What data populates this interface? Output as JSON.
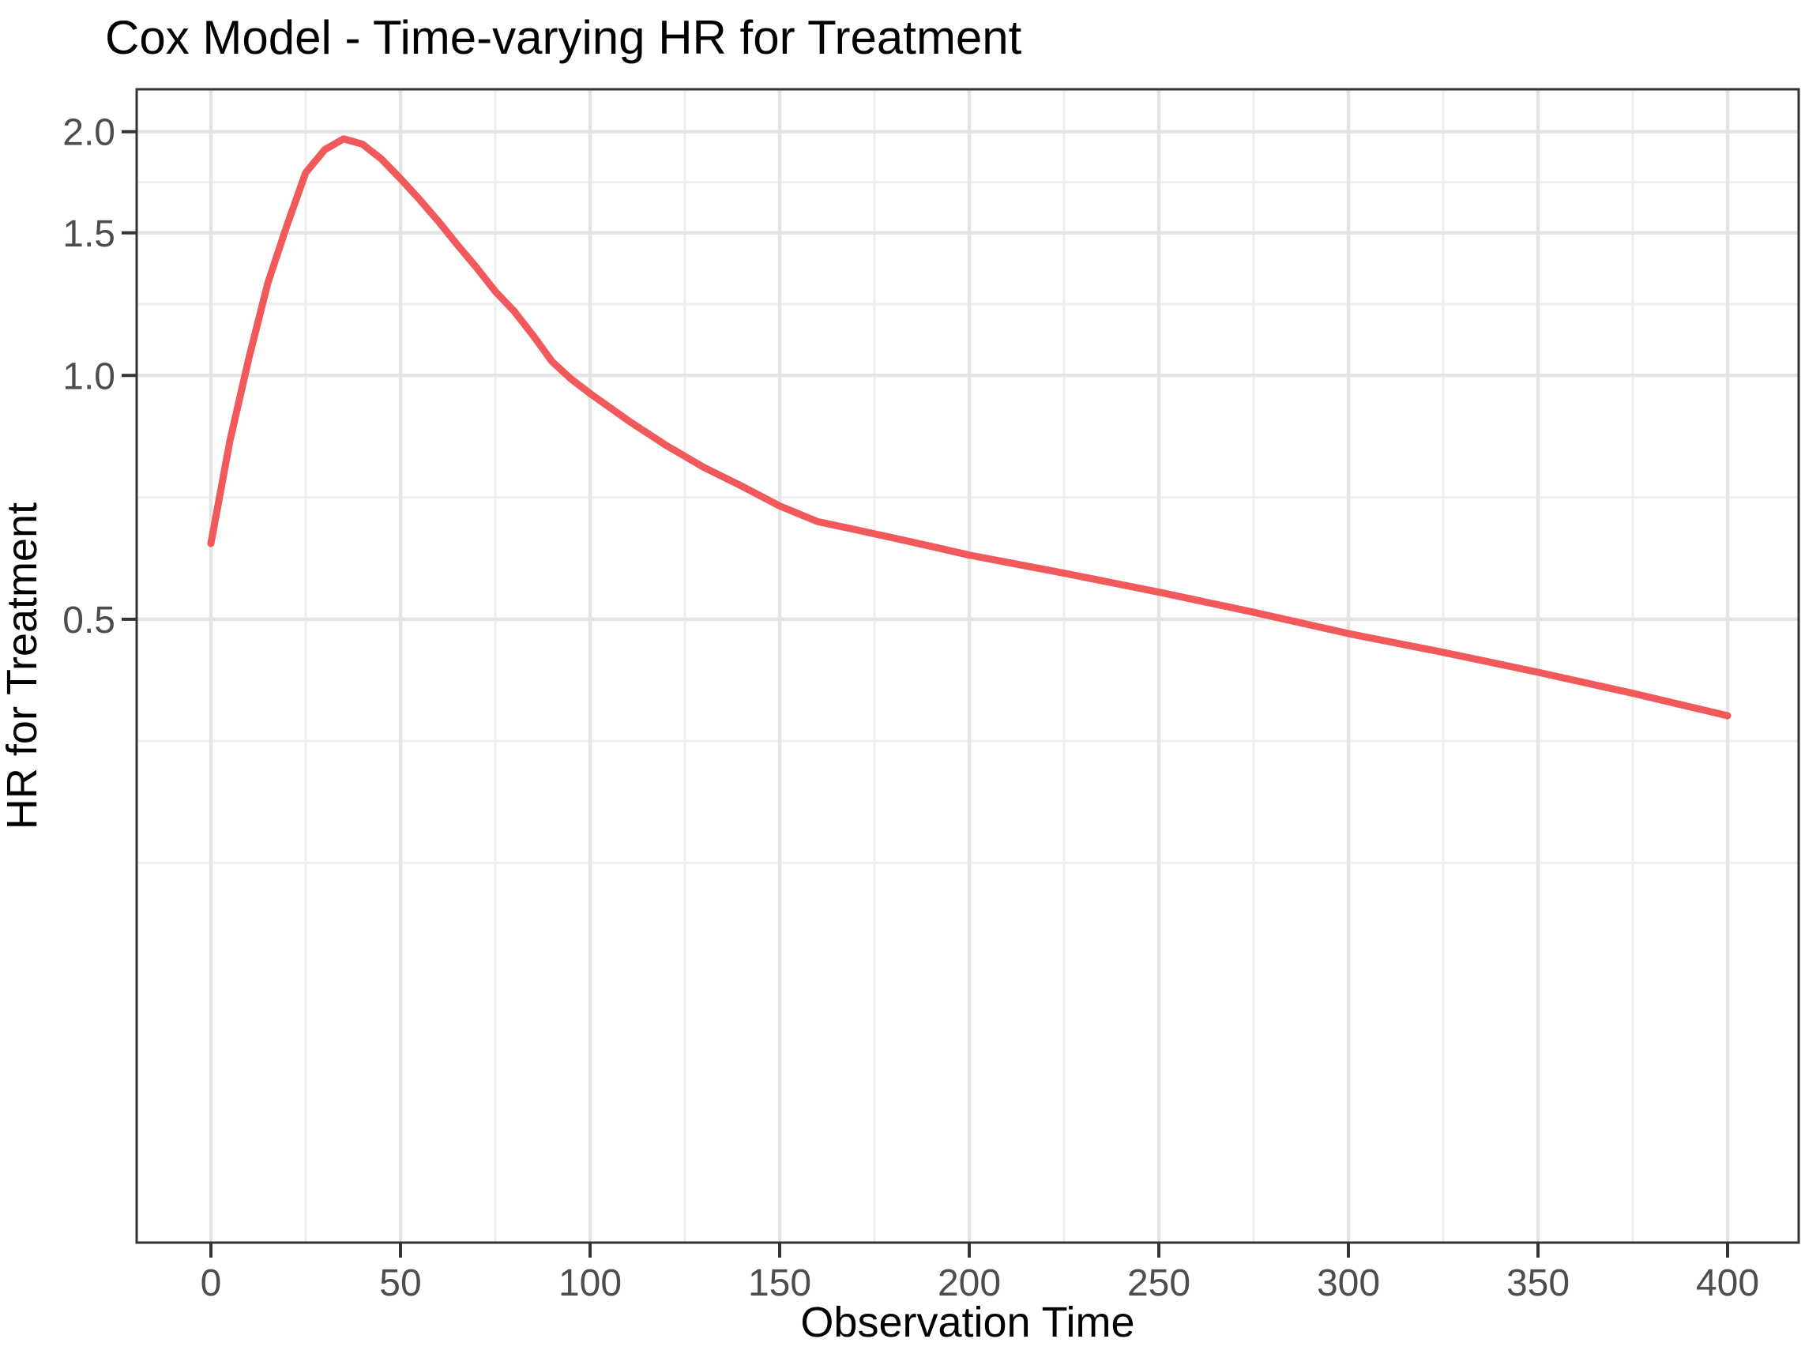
{
  "title": "Cox Model - Time-varying HR for Treatment",
  "chart_data": {
    "type": "line",
    "title": "Cox Model - Time-varying HR for Treatment",
    "xlabel": "Observation Time",
    "ylabel": "HR for Treatment",
    "x_scale": "linear",
    "y_scale": "log10",
    "xlim": [
      -20,
      420
    ],
    "ylim": [
      0.085,
      2.26
    ],
    "grid": true,
    "legend": "none",
    "x_major_ticks": [
      0,
      50,
      100,
      150,
      200,
      250,
      300,
      350,
      400
    ],
    "x_major_labels": [
      "0",
      "50",
      "100",
      "150",
      "200",
      "250",
      "300",
      "350",
      "400"
    ],
    "x_minor_ticks": [
      25,
      75,
      125,
      175,
      225,
      275,
      325,
      375
    ],
    "y_major_ticks": [
      2.0,
      1.5,
      1.0,
      0.5
    ],
    "y_major_labels": [
      "2.0",
      "1.5",
      "1.0",
      "0.5"
    ],
    "y_minor_ticks": [
      1.732,
      1.225,
      0.7071,
      0.3536,
      0.25
    ],
    "series": [
      {
        "name": "HR for Treatment",
        "color": "#F2595B",
        "points": [
          [
            0,
            0.62
          ],
          [
            5,
            0.83
          ],
          [
            10,
            1.05
          ],
          [
            15,
            1.3
          ],
          [
            20,
            1.53
          ],
          [
            25,
            1.78
          ],
          [
            30,
            1.9
          ],
          [
            35,
            1.96
          ],
          [
            40,
            1.93
          ],
          [
            45,
            1.85
          ],
          [
            50,
            1.75
          ],
          [
            55,
            1.65
          ],
          [
            60,
            1.55
          ],
          [
            65,
            1.45
          ],
          [
            70,
            1.36
          ],
          [
            75,
            1.27
          ],
          [
            80,
            1.2
          ],
          [
            85,
            1.12
          ],
          [
            90,
            1.04
          ],
          [
            95,
            0.99
          ],
          [
            100,
            0.95
          ],
          [
            110,
            0.88
          ],
          [
            120,
            0.82
          ],
          [
            130,
            0.77
          ],
          [
            140,
            0.73
          ],
          [
            150,
            0.69
          ],
          [
            160,
            0.66
          ],
          [
            170,
            0.645
          ],
          [
            180,
            0.63
          ],
          [
            190,
            0.615
          ],
          [
            200,
            0.6
          ],
          [
            225,
            0.57
          ],
          [
            250,
            0.54
          ],
          [
            275,
            0.51
          ],
          [
            300,
            0.48
          ],
          [
            325,
            0.455
          ],
          [
            350,
            0.43
          ],
          [
            375,
            0.405
          ],
          [
            400,
            0.38
          ]
        ]
      }
    ],
    "colors": {
      "line": "#F2595B",
      "panel_border": "#333333",
      "tick": "#333333",
      "grid_major": "#e4e4e4",
      "grid_minor": "#efefef",
      "tick_label": "#4d4d4d",
      "title_text": "#000000",
      "background": "#ffffff"
    }
  }
}
